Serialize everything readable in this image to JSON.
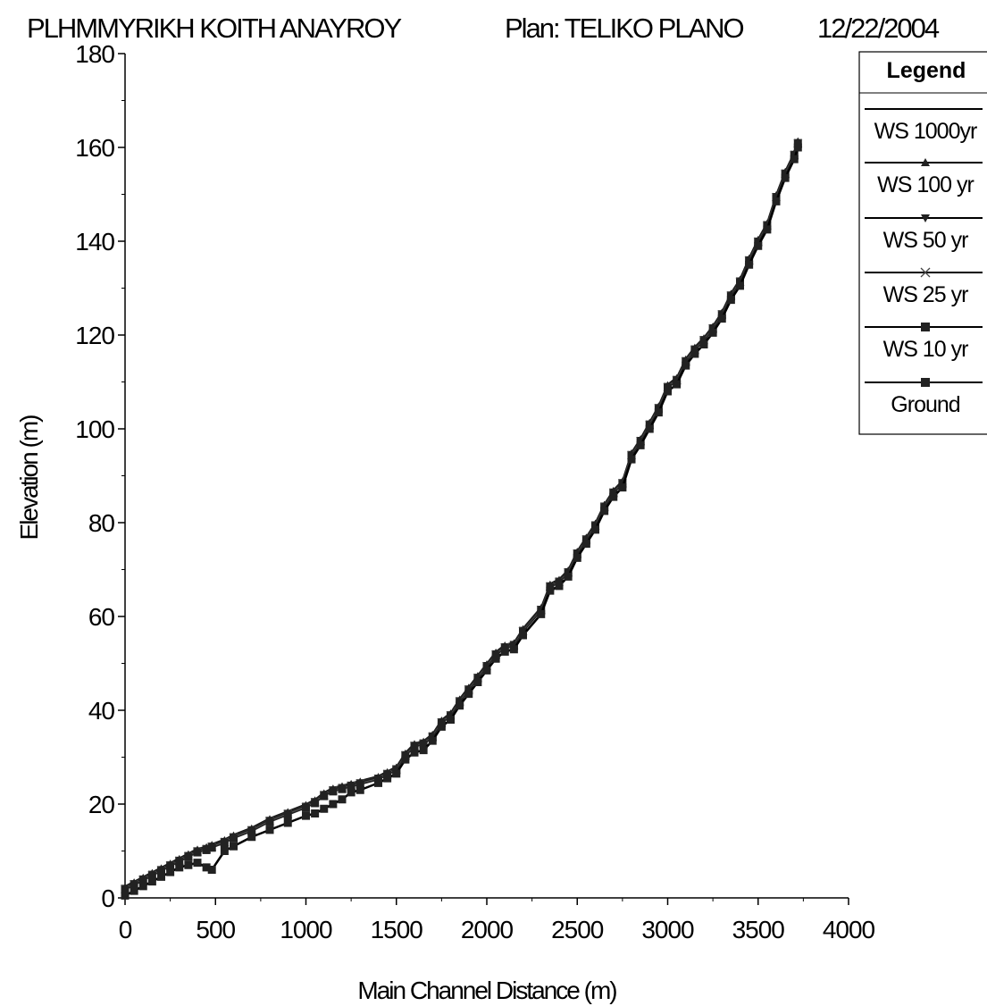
{
  "header": {
    "project": "PLHMMYRIKH KOITH ANAYROY",
    "plan": "Plan: TELIKO PLANO",
    "date": "12/22/2004"
  },
  "chart_data": {
    "type": "line",
    "title": "PLHMMYRIKH KOITH ANAYROY      Plan: TELIKO PLANO   12/22/2004",
    "xlabel": "Main Channel Distance (m)",
    "ylabel": "Elevation (m)",
    "xlim": [
      0,
      4000
    ],
    "ylim": [
      0,
      180
    ],
    "xticks": [
      0,
      500,
      1000,
      1500,
      2000,
      2500,
      3000,
      3500,
      4000
    ],
    "yticks": [
      0,
      20,
      40,
      60,
      80,
      100,
      120,
      140,
      160,
      180
    ],
    "grid": false,
    "legend_position": "top-right",
    "legend_title": "Legend",
    "x": [
      0,
      50,
      100,
      150,
      200,
      250,
      300,
      350,
      400,
      450,
      480,
      550,
      600,
      700,
      800,
      900,
      1000,
      1050,
      1100,
      1150,
      1200,
      1250,
      1300,
      1400,
      1450,
      1500,
      1550,
      1600,
      1650,
      1700,
      1750,
      1800,
      1850,
      1900,
      1950,
      2000,
      2050,
      2100,
      2150,
      2200,
      2300,
      2350,
      2400,
      2450,
      2500,
      2550,
      2600,
      2650,
      2700,
      2750,
      2800,
      2850,
      2900,
      2950,
      3000,
      3050,
      3100,
      3150,
      3200,
      3250,
      3300,
      3350,
      3400,
      3450,
      3500,
      3550,
      3600,
      3650,
      3700,
      3720
    ],
    "series": [
      {
        "name": "WS 1000yr",
        "marker": "none",
        "values": [
          2.5,
          3.5,
          4.5,
          5.5,
          6.5,
          7.5,
          8.5,
          9.5,
          10.5,
          11,
          11.5,
          12.5,
          13.5,
          15,
          17,
          18.5,
          20,
          21,
          22.5,
          23.5,
          24,
          24.5,
          25,
          26,
          27,
          28,
          31,
          33,
          33.5,
          35,
          38,
          39.5,
          42.5,
          45,
          47.5,
          50,
          52.5,
          54,
          54.5,
          57.5,
          62,
          67,
          68,
          70,
          74,
          77,
          80,
          84,
          87,
          89,
          95,
          98,
          101.5,
          105,
          109.5,
          111,
          115,
          117.5,
          119.5,
          122,
          125,
          129,
          132,
          136.5,
          140.5,
          144,
          150,
          155,
          159,
          161.5
        ]
      },
      {
        "name": "WS 100 yr",
        "marker": "triangle-up",
        "values": [
          2.3,
          3.3,
          4.3,
          5.3,
          6.3,
          7.3,
          8.3,
          9.3,
          10.3,
          10.8,
          11.3,
          12.3,
          13.3,
          14.8,
          16.8,
          18.3,
          19.8,
          20.8,
          22.3,
          23.3,
          23.8,
          24.3,
          24.8,
          25.8,
          26.8,
          27.8,
          30.8,
          32.8,
          33.3,
          34.8,
          37.8,
          39.3,
          42.3,
          44.8,
          47.3,
          49.8,
          52.3,
          53.8,
          54.3,
          57.3,
          61.8,
          66.8,
          67.8,
          69.8,
          73.8,
          76.8,
          79.8,
          83.8,
          86.8,
          88.8,
          94.8,
          97.8,
          101.3,
          104.8,
          109.3,
          110.8,
          114.8,
          117.3,
          119.3,
          121.8,
          124.8,
          128.8,
          131.8,
          136.3,
          140.3,
          143.8,
          149.8,
          154.8,
          158.8,
          161.3
        ]
      },
      {
        "name": "WS 50 yr",
        "marker": "triangle-down",
        "values": [
          2.1,
          3.1,
          4.1,
          5.1,
          6.1,
          7.1,
          8.1,
          9.1,
          10.1,
          10.6,
          11.1,
          12.1,
          13.1,
          14.6,
          16.6,
          18.1,
          19.6,
          20.6,
          22.1,
          23.1,
          23.6,
          24.1,
          24.6,
          25.6,
          26.6,
          27.6,
          30.6,
          32.6,
          33.1,
          34.6,
          37.6,
          39.1,
          42.1,
          44.6,
          47.1,
          49.6,
          52.1,
          53.6,
          54.1,
          57.1,
          61.6,
          66.6,
          67.6,
          69.6,
          73.6,
          76.6,
          79.6,
          83.6,
          86.6,
          88.6,
          94.6,
          97.6,
          101.1,
          104.6,
          109.1,
          110.6,
          114.6,
          117.1,
          119.1,
          121.6,
          124.6,
          128.6,
          131.6,
          136.1,
          140.1,
          143.6,
          149.6,
          154.6,
          158.6,
          161.1
        ]
      },
      {
        "name": "WS 25 yr",
        "marker": "x",
        "values": [
          1.9,
          2.9,
          3.9,
          4.9,
          5.9,
          6.9,
          7.9,
          8.9,
          9.9,
          10.4,
          10.9,
          11.9,
          12.9,
          14.4,
          16.4,
          17.9,
          19.4,
          20.4,
          21.9,
          22.9,
          23.4,
          23.9,
          24.4,
          25.4,
          26.4,
          27.4,
          30.4,
          32.4,
          32.9,
          34.4,
          37.4,
          38.9,
          41.9,
          44.4,
          46.9,
          49.4,
          51.9,
          53.4,
          53.9,
          56.9,
          61.4,
          66.4,
          67.4,
          69.4,
          73.4,
          76.4,
          79.4,
          83.4,
          86.4,
          88.4,
          94.4,
          97.4,
          100.9,
          104.4,
          108.9,
          110.4,
          114.4,
          116.9,
          118.9,
          121.4,
          124.4,
          128.4,
          131.4,
          135.9,
          139.9,
          143.4,
          149.4,
          154.4,
          158.4,
          160.9
        ]
      },
      {
        "name": "WS 10 yr",
        "marker": "square",
        "values": [
          1.7,
          2.7,
          3.7,
          4.7,
          5.7,
          6.7,
          7.7,
          8.7,
          9.7,
          10.2,
          10.7,
          11.7,
          12.7,
          14.2,
          16.2,
          17.7,
          19.2,
          20.2,
          21.7,
          22.7,
          23.2,
          23.7,
          24.2,
          25.2,
          26.2,
          27.2,
          30.2,
          32.2,
          32.7,
          34.2,
          37.2,
          38.7,
          41.7,
          44.2,
          46.7,
          49.2,
          51.7,
          53.2,
          53.7,
          56.7,
          61.2,
          66.2,
          67.2,
          69.2,
          73.2,
          76.2,
          79.2,
          83.2,
          86.2,
          88.2,
          94.2,
          97.2,
          100.7,
          104.2,
          108.7,
          110.2,
          114.2,
          116.7,
          118.7,
          121.2,
          124.2,
          128.2,
          131.2,
          135.7,
          139.7,
          143.2,
          149.2,
          154.2,
          158.2,
          160.7
        ]
      },
      {
        "name": "Ground",
        "marker": "square",
        "values": [
          0.5,
          1.5,
          2.5,
          3.5,
          4.5,
          5.5,
          6.5,
          7.0,
          7.5,
          6.5,
          6.0,
          10.0,
          11.0,
          13.0,
          14.5,
          16.0,
          17.5,
          18.0,
          19.0,
          20.0,
          21.0,
          22.5,
          23.0,
          24.5,
          25.5,
          26.5,
          29.5,
          31.0,
          31.5,
          33.5,
          36.5,
          38.0,
          41.0,
          43.5,
          46.0,
          48.5,
          51.0,
          52.5,
          53.0,
          56.0,
          60.5,
          65.5,
          66.5,
          68.5,
          72.5,
          75.5,
          78.5,
          82.5,
          85.5,
          87.5,
          93.5,
          96.5,
          100.0,
          103.5,
          108.0,
          109.5,
          113.5,
          116.0,
          118.0,
          120.5,
          123.5,
          127.5,
          130.5,
          135.0,
          139.0,
          142.5,
          148.5,
          153.5,
          157.5,
          160.0
        ]
      }
    ]
  }
}
